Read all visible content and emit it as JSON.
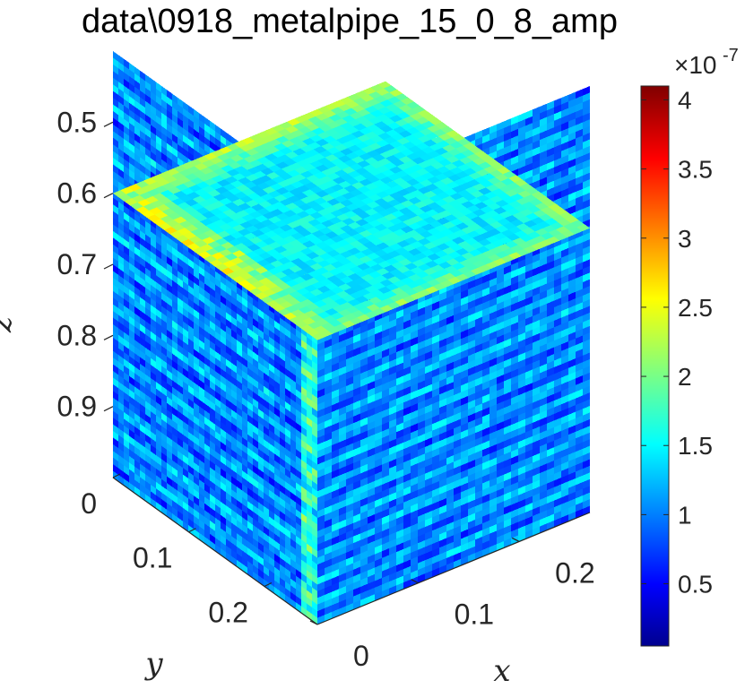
{
  "chart_data": {
    "type": "heatmap",
    "plot_kind": "3d-volume-slices",
    "title": "data\\0918_metalpipe_15_0_8_amp",
    "xlabel": "x",
    "ylabel": "y",
    "zlabel": "z",
    "xlim": [
      0,
      0.27
    ],
    "ylim": [
      0,
      0.27
    ],
    "zlim": [
      0.4,
      1.0
    ],
    "z_direction": "reverse",
    "x_ticks": [
      {
        "value": 0,
        "label": "0"
      },
      {
        "value": 0.1,
        "label": "0.1"
      },
      {
        "value": 0.2,
        "label": "0.2"
      }
    ],
    "y_ticks": [
      {
        "value": 0,
        "label": "0"
      },
      {
        "value": 0.1,
        "label": "0.1"
      },
      {
        "value": 0.2,
        "label": "0.2"
      }
    ],
    "z_ticks": [
      {
        "value": 0.5,
        "label": "0.5"
      },
      {
        "value": 0.6,
        "label": "0.6"
      },
      {
        "value": 0.7,
        "label": "0.7"
      },
      {
        "value": 0.8,
        "label": "0.8"
      },
      {
        "value": 0.9,
        "label": "0.9"
      }
    ],
    "slices": [
      {
        "plane": "x",
        "value": 0
      },
      {
        "plane": "y",
        "value": 0.27
      },
      {
        "plane": "z",
        "value": 0.6
      }
    ],
    "colormap": "jet",
    "colorbar": {
      "range": [
        0.05,
        4.1
      ],
      "exponent_label": "×10",
      "exponent_value": "-7",
      "ticks": [
        {
          "value": 0.5,
          "label": "0.5"
        },
        {
          "value": 1,
          "label": "1"
        },
        {
          "value": 1.5,
          "label": "1.5"
        },
        {
          "value": 2,
          "label": "2"
        },
        {
          "value": 2.5,
          "label": "2.5"
        },
        {
          "value": 3,
          "label": "3"
        },
        {
          "value": 3.5,
          "label": "3.5"
        },
        {
          "value": 4,
          "label": "4"
        }
      ]
    },
    "grid": false
  }
}
